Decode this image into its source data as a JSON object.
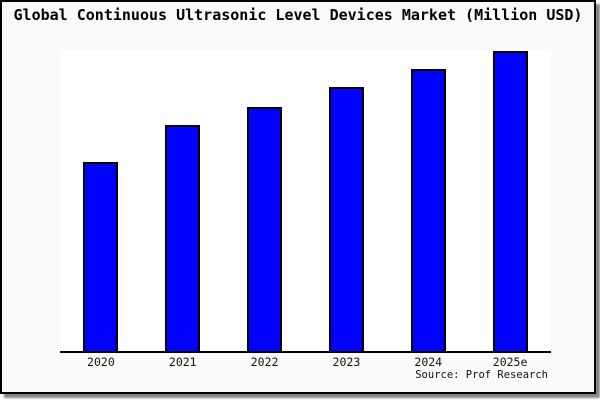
{
  "figure": {
    "background": "#fafafa",
    "plot_background": "#ffffff",
    "frame_border_color": "#000000",
    "shadow_color": "#6e6e6e"
  },
  "chart_data": {
    "type": "bar",
    "title": "Global Continuous Ultrasonic Level Devices Market (Million USD)",
    "categories": [
      "2020",
      "2021",
      "2022",
      "2023",
      "2024",
      "2025e"
    ],
    "values": [
      189,
      226,
      244,
      264,
      282,
      300
    ],
    "y_axis_note": "no y-axis ticks, labels or gridlines shown; values are relative bar heights with baseline 0",
    "xlabel": "",
    "ylabel": "",
    "ylim": [
      0,
      301
    ],
    "grid": false,
    "legend": false,
    "bar_color": "#0000ff",
    "bar_border_color": "#000000",
    "axis_color": "#000000"
  },
  "source_note": "Source: Prof Research"
}
